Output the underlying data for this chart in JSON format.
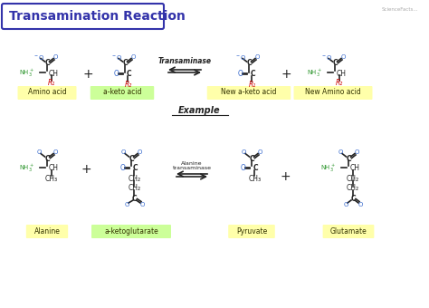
{
  "title": "Transamination Reaction",
  "bg_color": "#ffffff",
  "title_color": "#3333aa",
  "title_border_color": "#3333aa",
  "blue_color": "#3366cc",
  "green_color": "#339933",
  "red_color": "#cc0000",
  "black_color": "#222222",
  "label_bg": "#ffffaa",
  "label_bg2": "#ccff99",
  "example_label": "Example",
  "enzyme_label": "Transaminase",
  "enzyme2_label": "Alanine\ntransaminase",
  "labels_row1": [
    "Amino acid",
    "a-keto acid",
    "New a-keto acid",
    "New Amino acid"
  ],
  "labels_row2": [
    "Alanine",
    "a-ketoglutarate",
    "Pyruvate",
    "Glutamate"
  ],
  "watermark": "ScienceFacts..."
}
